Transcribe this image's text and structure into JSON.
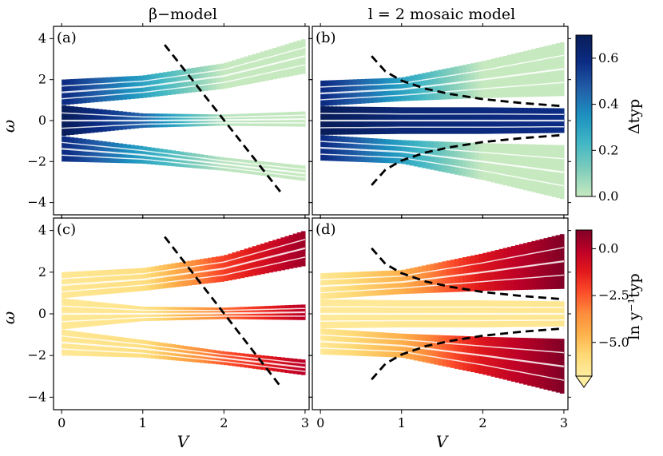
{
  "chart_data": {
    "type": "area",
    "description_free": true,
    "column_titles": [
      "β−model",
      "l = 2 mosaic model"
    ],
    "xlabel": "V",
    "ylabel": "ω",
    "xlim": [
      -0.1,
      3.05
    ],
    "ylim": [
      -4.6,
      4.6
    ],
    "xticks": [
      0,
      1,
      2,
      3
    ],
    "yticks": [
      -4,
      -2,
      0,
      2,
      4
    ],
    "panels": [
      {
        "label": "(a)",
        "model": "beta",
        "quantity": "Delta_typ",
        "bands": [
          {
            "name": "upper-main",
            "x": [
              0,
              1,
              2,
              3
            ],
            "lower": [
              0.75,
              1.1,
              1.55,
              2.3
            ],
            "upper": [
              2.0,
              2.2,
              2.8,
              4.0
            ],
            "values": [
              0.6,
              0.3,
              0.0,
              0.0
            ]
          },
          {
            "name": "central",
            "x": [
              0,
              1,
              2,
              3
            ],
            "lower": [
              -0.75,
              -0.35,
              -0.25,
              -0.3
            ],
            "upper": [
              0.75,
              0.35,
              0.3,
              0.45
            ],
            "values": [
              0.7,
              0.45,
              0.02,
              0.0
            ]
          },
          {
            "name": "lower-main",
            "x": [
              0,
              1,
              2,
              3
            ],
            "lower": [
              -2.0,
              -2.1,
              -2.45,
              -2.95
            ],
            "upper": [
              -0.75,
              -1.25,
              -1.8,
              -2.2
            ],
            "values": [
              0.6,
              0.3,
              0.02,
              0.0
            ]
          }
        ],
        "dashed_line": {
          "x": [
            1.27,
            2.7
          ],
          "y": [
            3.7,
            -3.5
          ]
        }
      },
      {
        "label": "(b)",
        "model": "mosaic",
        "quantity": "Delta_typ",
        "bands": [
          {
            "name": "upper-main",
            "x": [
              0,
              1,
              2,
              3
            ],
            "lower": [
              0.7,
              0.95,
              1.1,
              1.2
            ],
            "upper": [
              1.95,
              2.1,
              2.9,
              3.85
            ],
            "values": [
              0.6,
              0.3,
              0.0,
              0.0
            ]
          },
          {
            "name": "central",
            "x": [
              0,
              1,
              2,
              3
            ],
            "lower": [
              -0.7,
              -0.65,
              -0.65,
              -0.6
            ],
            "upper": [
              0.7,
              0.65,
              0.65,
              0.6
            ],
            "values": [
              0.7,
              0.62,
              0.6,
              0.58
            ]
          },
          {
            "name": "lower-main",
            "x": [
              0,
              1,
              2,
              3
            ],
            "lower": [
              -1.95,
              -2.1,
              -2.9,
              -3.85
            ],
            "upper": [
              -0.7,
              -0.95,
              -1.1,
              -1.2
            ],
            "values": [
              0.6,
              0.3,
              0.0,
              0.0
            ]
          }
        ],
        "dashed_curves": [
          {
            "x": [
              0.63,
              0.8,
              1.0,
              1.3,
              1.6,
              2.0,
              2.5,
              3.0
            ],
            "y": [
              3.15,
              2.4,
              1.95,
              1.55,
              1.3,
              1.05,
              0.85,
              0.7
            ]
          },
          {
            "x": [
              0.63,
              0.8,
              1.0,
              1.3,
              1.6,
              2.0,
              2.5,
              3.0
            ],
            "y": [
              -3.15,
              -2.4,
              -1.95,
              -1.55,
              -1.3,
              -1.05,
              -0.85,
              -0.7
            ]
          }
        ]
      },
      {
        "label": "(c)",
        "model": "beta",
        "quantity": "ln y_typ^-1",
        "bands": [
          {
            "name": "upper-main",
            "x": [
              0,
              1,
              2,
              3
            ],
            "lower": [
              0.75,
              1.1,
              1.55,
              2.3
            ],
            "upper": [
              2.0,
              2.2,
              2.8,
              4.0
            ],
            "values": [
              -6.5,
              -6.0,
              -2.0,
              0.5
            ]
          },
          {
            "name": "central",
            "x": [
              0,
              1,
              2,
              3
            ],
            "lower": [
              -0.75,
              -0.35,
              -0.25,
              -0.3
            ],
            "upper": [
              0.75,
              0.35,
              0.3,
              0.45
            ],
            "values": [
              -6.5,
              -6.3,
              -3.0,
              0.0
            ]
          },
          {
            "name": "lower-main",
            "x": [
              0,
              1,
              2,
              3
            ],
            "lower": [
              -2.0,
              -2.1,
              -2.45,
              -2.95
            ],
            "upper": [
              -0.75,
              -1.25,
              -1.8,
              -2.2
            ],
            "values": [
              -6.5,
              -6.0,
              -2.5,
              0.0
            ]
          }
        ],
        "dashed_line": {
          "x": [
            1.27,
            2.7
          ],
          "y": [
            3.7,
            -3.5
          ]
        }
      },
      {
        "label": "(d)",
        "model": "mosaic",
        "quantity": "ln y_typ^-1",
        "bands": [
          {
            "name": "upper-main",
            "x": [
              0,
              1,
              2,
              3
            ],
            "lower": [
              0.7,
              0.95,
              1.1,
              1.2
            ],
            "upper": [
              1.95,
              2.1,
              2.9,
              3.85
            ],
            "values": [
              -6.5,
              -4.5,
              -1.0,
              1.0
            ]
          },
          {
            "name": "central",
            "x": [
              0,
              1,
              2,
              3
            ],
            "lower": [
              -0.7,
              -0.65,
              -0.65,
              -0.6
            ],
            "upper": [
              0.7,
              0.65,
              0.65,
              0.6
            ],
            "values": [
              -6.6,
              -6.5,
              -6.5,
              -6.4
            ]
          },
          {
            "name": "lower-main",
            "x": [
              0,
              1,
              2,
              3
            ],
            "lower": [
              -1.95,
              -2.1,
              -2.9,
              -3.85
            ],
            "upper": [
              -0.7,
              -0.95,
              -1.1,
              -1.2
            ],
            "values": [
              -6.5,
              -4.5,
              -1.0,
              1.0
            ]
          }
        ],
        "dashed_curves": [
          {
            "x": [
              0.63,
              0.8,
              1.0,
              1.3,
              1.6,
              2.0,
              2.5,
              3.0
            ],
            "y": [
              3.15,
              2.4,
              1.95,
              1.55,
              1.3,
              1.05,
              0.85,
              0.7
            ]
          },
          {
            "x": [
              0.63,
              0.8,
              1.0,
              1.3,
              1.6,
              2.0,
              2.5,
              3.0
            ],
            "y": [
              -3.15,
              -2.4,
              -1.95,
              -1.55,
              -1.3,
              -1.05,
              -0.85,
              -0.7
            ]
          }
        ]
      }
    ],
    "colorbars": [
      {
        "label": "Δtyp",
        "range": [
          0.0,
          0.7
        ],
        "ticks": [
          0.0,
          0.2,
          0.4,
          0.6
        ],
        "tick_labels": [
          "0.0",
          "0.2",
          "0.4",
          "0.6"
        ],
        "colormap": "YlGnBu",
        "stops": [
          "#c7e9c0",
          "#7fcdbb",
          "#41b6c4",
          "#1d91c0",
          "#225ea8",
          "#0c2c84",
          "#081d58"
        ]
      },
      {
        "label": "ln y⁻¹typ",
        "range": [
          -6.8,
          1.0
        ],
        "ticks": [
          0.0,
          -2.5,
          -5.0
        ],
        "tick_labels": [
          "0.0",
          "−2.5",
          "−5.0"
        ],
        "colormap": "YlOrRd",
        "extend": "min",
        "stops": [
          "#ffeda0",
          "#fed976",
          "#feb24c",
          "#fd8d3c",
          "#fc4e2a",
          "#e31a1c",
          "#bd0026",
          "#800026"
        ]
      }
    ]
  }
}
